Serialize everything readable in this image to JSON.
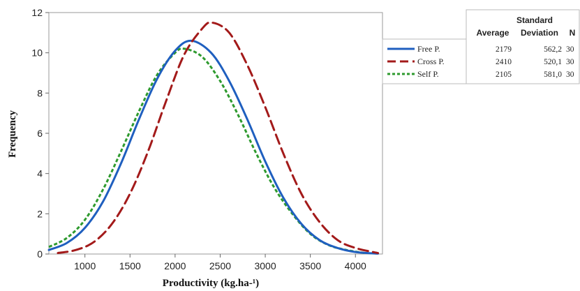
{
  "chart_data": {
    "type": "line",
    "title": "",
    "xlabel": "Productivity (kg.ha-¹)",
    "ylabel": "Frequency",
    "xlim": [
      600,
      4300
    ],
    "ylim": [
      0,
      12
    ],
    "xticks": [
      1000,
      1500,
      2000,
      2500,
      3000,
      3500,
      4000
    ],
    "yticks": [
      0,
      2,
      4,
      6,
      8,
      10,
      12
    ],
    "grid": false,
    "legend_position": "top-right",
    "series": [
      {
        "name": "Free P.",
        "color": "#1f5fbf",
        "style": "solid",
        "mean": 2179,
        "sd": 562.2,
        "n": 30,
        "x": [
          600,
          800,
          1000,
          1200,
          1400,
          1600,
          1800,
          2000,
          2179,
          2400,
          2600,
          2800,
          3000,
          3200,
          3400,
          3600,
          3800,
          4000,
          4250
        ],
        "y": [
          0.2,
          0.55,
          1.3,
          2.6,
          4.5,
          6.7,
          8.7,
          10.1,
          10.6,
          10.0,
          8.6,
          6.7,
          4.6,
          2.8,
          1.5,
          0.7,
          0.3,
          0.1,
          0.02
        ]
      },
      {
        "name": "Cross P.",
        "color": "#a31a1a",
        "style": "dashed",
        "mean": 2410,
        "sd": 520.1,
        "n": 30,
        "x": [
          700,
          900,
          1100,
          1300,
          1500,
          1700,
          1900,
          2100,
          2300,
          2410,
          2600,
          2800,
          3000,
          3200,
          3400,
          3600,
          3800,
          4000,
          4250
        ],
        "y": [
          0.05,
          0.2,
          0.6,
          1.5,
          3.0,
          5.1,
          7.6,
          9.9,
          11.2,
          11.5,
          11.0,
          9.4,
          7.3,
          5.0,
          3.0,
          1.6,
          0.7,
          0.3,
          0.05
        ]
      },
      {
        "name": "Self P.",
        "color": "#2e9a2e",
        "style": "dotted",
        "mean": 2105,
        "sd": 581.0,
        "n": 30,
        "x": [
          600,
          800,
          1000,
          1200,
          1400,
          1600,
          1800,
          2000,
          2105,
          2300,
          2500,
          2700,
          2900,
          3100,
          3300,
          3500,
          3700,
          3900,
          4100
        ],
        "y": [
          0.35,
          0.8,
          1.7,
          3.2,
          5.1,
          7.1,
          8.9,
          10.0,
          10.2,
          9.8,
          8.6,
          6.9,
          5.0,
          3.3,
          2.0,
          1.0,
          0.45,
          0.2,
          0.05
        ]
      }
    ]
  },
  "stats_table": {
    "header_line1": "Standard",
    "col_average": "Average",
    "col_sd": "Deviation",
    "col_n": "N",
    "rows": [
      {
        "average": "2179",
        "sd": "562,2",
        "n": "30"
      },
      {
        "average": "2410",
        "sd": "520,1",
        "n": "30"
      },
      {
        "average": "2105",
        "sd": "581,0",
        "n": "30"
      }
    ]
  }
}
